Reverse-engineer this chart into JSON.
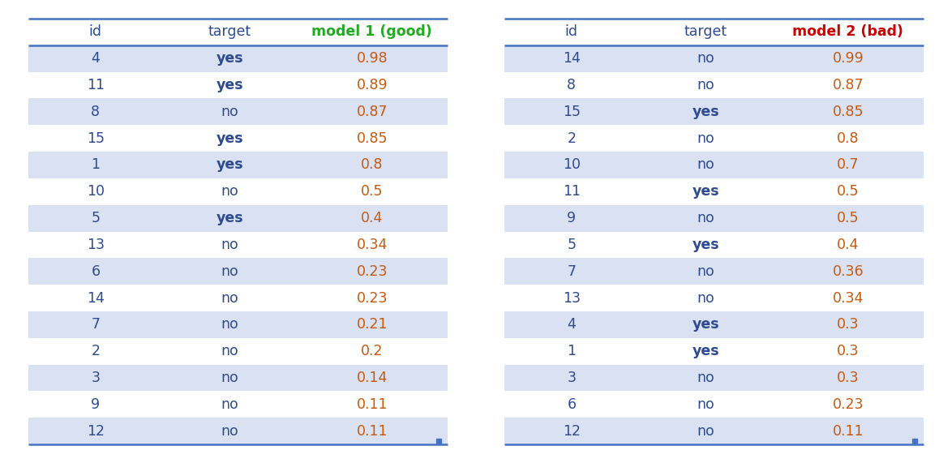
{
  "table1": {
    "header": [
      "id",
      "target",
      "model 1 (good)"
    ],
    "header_colors": [
      "#2E4B8F",
      "#2E4B8F",
      "#22AA22"
    ],
    "header_bold": [
      false,
      false,
      true
    ],
    "rows": [
      [
        "4",
        "yes",
        "0.98"
      ],
      [
        "11",
        "yes",
        "0.89"
      ],
      [
        "8",
        "no",
        "0.87"
      ],
      [
        "15",
        "yes",
        "0.85"
      ],
      [
        "1",
        "yes",
        "0.8"
      ],
      [
        "10",
        "no",
        "0.5"
      ],
      [
        "5",
        "yes",
        "0.4"
      ],
      [
        "13",
        "no",
        "0.34"
      ],
      [
        "6",
        "no",
        "0.23"
      ],
      [
        "14",
        "no",
        "0.23"
      ],
      [
        "7",
        "no",
        "0.21"
      ],
      [
        "2",
        "no",
        "0.2"
      ],
      [
        "3",
        "no",
        "0.14"
      ],
      [
        "9",
        "no",
        "0.11"
      ],
      [
        "12",
        "no",
        "0.11"
      ]
    ],
    "target_yes_rows": [
      0,
      1,
      3,
      4,
      6
    ]
  },
  "table2": {
    "header": [
      "id",
      "target",
      "model 2 (bad)"
    ],
    "header_colors": [
      "#2E4B8F",
      "#2E4B8F",
      "#CC0000"
    ],
    "header_bold": [
      false,
      false,
      true
    ],
    "rows": [
      [
        "14",
        "no",
        "0.99"
      ],
      [
        "8",
        "no",
        "0.87"
      ],
      [
        "15",
        "yes",
        "0.85"
      ],
      [
        "2",
        "no",
        "0.8"
      ],
      [
        "10",
        "no",
        "0.7"
      ],
      [
        "11",
        "yes",
        "0.5"
      ],
      [
        "9",
        "no",
        "0.5"
      ],
      [
        "5",
        "yes",
        "0.4"
      ],
      [
        "7",
        "no",
        "0.36"
      ],
      [
        "13",
        "no",
        "0.34"
      ],
      [
        "4",
        "yes",
        "0.3"
      ],
      [
        "1",
        "yes",
        "0.3"
      ],
      [
        "3",
        "no",
        "0.3"
      ],
      [
        "6",
        "no",
        "0.23"
      ],
      [
        "12",
        "no",
        "0.11"
      ]
    ],
    "target_yes_rows": [
      2,
      5,
      7,
      10,
      11
    ]
  },
  "row_bg_even": "#FFFFFF",
  "row_bg_odd": "#D9E1F2",
  "id_color": "#2E4B8F",
  "score_color": "#C55A11",
  "header_bg": "#FFFFFF",
  "border_color": "#4472C4",
  "font_size": 12.5,
  "header_font_size": 12.5
}
